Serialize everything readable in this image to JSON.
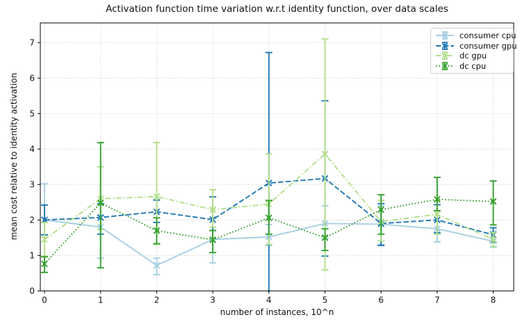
{
  "chart_data": {
    "type": "line",
    "title": "Activation function time variation w.r.t identity function, over data scales",
    "xlabel": "number of instances, 10^n",
    "ylabel": "mean cost relative to identity activation",
    "x": [
      0,
      1,
      2,
      3,
      4,
      5,
      6,
      7,
      8
    ],
    "xticks": [
      "0",
      "1",
      "2",
      "3",
      "4",
      "5",
      "6",
      "7",
      "8"
    ],
    "yticks": [
      "0",
      "1",
      "2",
      "3",
      "4",
      "5",
      "6",
      "7"
    ],
    "xlim": [
      -0.07,
      8.36
    ],
    "ylim": [
      0,
      7.55
    ],
    "grid": true,
    "grid_color": "#bbbbbb",
    "axis_color": "#000000",
    "legend_position": "upper right",
    "marker": "x",
    "series": [
      {
        "name": "consumer cpu",
        "color": "#a6cee3",
        "linestyle": "solid",
        "values": [
          2.0,
          1.8,
          0.72,
          1.45,
          1.52,
          1.9,
          1.88,
          1.75,
          1.4
        ],
        "err_low": [
          1.58,
          0.92,
          0.46,
          0.79,
          1.28,
          1.48,
          1.31,
          1.38,
          1.23
        ],
        "err_high": [
          3.02,
          2.12,
          0.92,
          1.8,
          1.87,
          2.4,
          2.4,
          1.98,
          1.68
        ]
      },
      {
        "name": "consumer gpu",
        "color": "#1f78b4",
        "linestyle": "dashed",
        "values": [
          2.0,
          2.07,
          2.23,
          2.01,
          3.04,
          3.17,
          1.9,
          2.0,
          1.58
        ],
        "err_low": [
          1.58,
          1.6,
          1.93,
          1.7,
          -0.08,
          0.98,
          1.28,
          1.64,
          1.38
        ],
        "err_high": [
          2.42,
          2.46,
          2.56,
          2.65,
          6.72,
          5.36,
          2.46,
          2.43,
          1.78
        ]
      },
      {
        "name": "dc gpu",
        "color": "#b2df8a",
        "linestyle": "dashdot",
        "values": [
          1.45,
          2.6,
          2.66,
          2.29,
          2.45,
          3.86,
          1.95,
          2.16,
          1.45
        ],
        "err_low": [
          0.98,
          1.73,
          1.31,
          1.8,
          1.31,
          0.59,
          1.41,
          1.6,
          1.25
        ],
        "err_high": [
          1.93,
          3.5,
          4.18,
          2.85,
          3.86,
          7.1,
          2.55,
          2.55,
          1.64
        ]
      },
      {
        "name": "dc cpu",
        "color": "#33a02c",
        "linestyle": "dotted",
        "values": [
          0.76,
          2.48,
          1.7,
          1.44,
          2.06,
          1.5,
          2.29,
          2.58,
          2.52
        ],
        "err_low": [
          0.52,
          0.65,
          1.33,
          1.08,
          1.6,
          1.14,
          1.6,
          2.26,
          1.86
        ],
        "err_high": [
          0.96,
          4.18,
          2.06,
          1.7,
          2.55,
          1.75,
          2.71,
          3.2,
          3.1
        ]
      }
    ]
  }
}
